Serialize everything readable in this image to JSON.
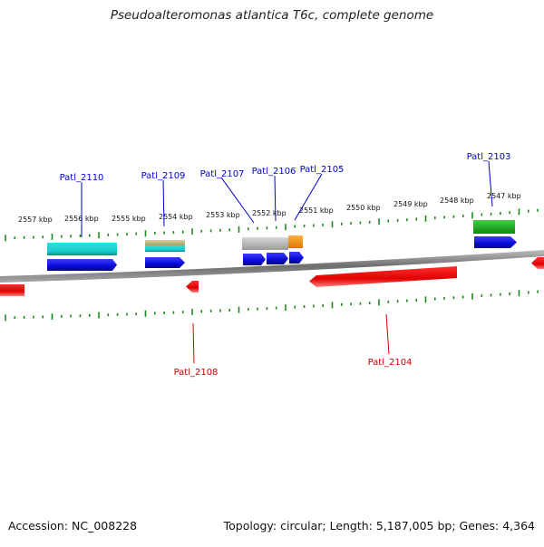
{
  "title": "Pseudoalteromonas atlantica T6c, complete genome",
  "footer": {
    "accession": "Accession: NC_008228",
    "summary": "Topology: circular; Length: 5,187,005 bp; Genes: 4,364"
  },
  "colors": {
    "forward_gene": "#0a0ad8",
    "reverse_gene": "#e00000",
    "backbone": "#8a8a8a",
    "tick": "#1a8a1a",
    "label_forward": "#0000cc",
    "label_reverse": "#cc0000",
    "cog_cyan": "#19c8c8",
    "cog_khaki": "#c8bc80",
    "cog_gray": "#c0c0c0",
    "cog_orange": "#ff9800",
    "cog_green": "#22bb22"
  },
  "ruler_labels": [
    "2557 kbp",
    "2556 kbp",
    "2555 kbp",
    "2554 kbp",
    "2553 kbp",
    "2552 kbp",
    "2551 kbp",
    "2550 kbp",
    "2549 kbp",
    "2548 kbp",
    "2547 kbp"
  ],
  "gene_labels_forward": [
    "Patl_2110",
    "Patl_2109",
    "Patl_2107",
    "Patl_2106",
    "Patl_2105",
    "Patl_2103"
  ],
  "gene_labels_reverse": [
    "Patl_2108",
    "Patl_2104"
  ]
}
